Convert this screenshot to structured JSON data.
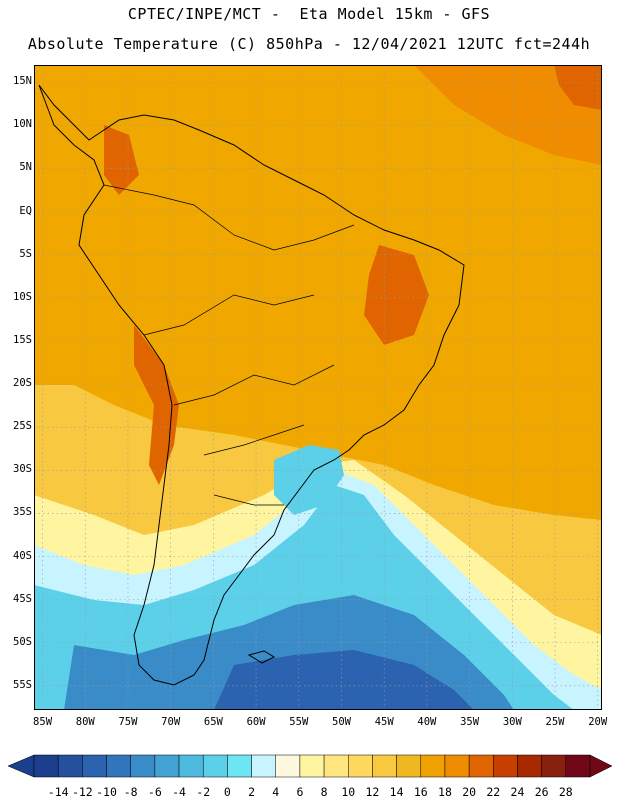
{
  "header": {
    "line1": "CPTEC/INPE/MCT -  Eta Model 15km - GFS",
    "line2": "Absolute Temperature (C) 850hPa - 12/04/2021 12UTC fct=244h"
  },
  "map": {
    "lat_labels": [
      "15N",
      "10N",
      "5N",
      "EQ",
      "5S",
      "10S",
      "15S",
      "20S",
      "25S",
      "30S",
      "35S",
      "40S",
      "45S",
      "50S",
      "55S"
    ],
    "lon_labels": [
      "85W",
      "80W",
      "75W",
      "70W",
      "65W",
      "60W",
      "55W",
      "50W",
      "45W",
      "40W",
      "35W",
      "30W",
      "25W",
      "20W"
    ],
    "background_color": "#f0a800",
    "colors": {
      "land_outline": "#000000",
      "grid": "#9a9a9a"
    }
  },
  "colorbar": {
    "values": [
      "-14",
      "-12",
      "-10",
      "-8",
      "-6",
      "-4",
      "-2",
      "0",
      "2",
      "4",
      "6",
      "8",
      "10",
      "12",
      "14",
      "16",
      "18",
      "20",
      "22",
      "24",
      "26",
      "28"
    ],
    "colors": [
      "#1b3f8c",
      "#25509e",
      "#2b63b0",
      "#3176bd",
      "#3a8cc8",
      "#43a3d4",
      "#4fbadf",
      "#5dd0e9",
      "#6de6f3",
      "#c8f4ff",
      "#fff8e0",
      "#fff4a0",
      "#ffe680",
      "#ffd860",
      "#f8c840",
      "#f0b820",
      "#f0a000",
      "#f08c00",
      "#e06400",
      "#c84000",
      "#a82800",
      "#882010",
      "#700818"
    ]
  }
}
